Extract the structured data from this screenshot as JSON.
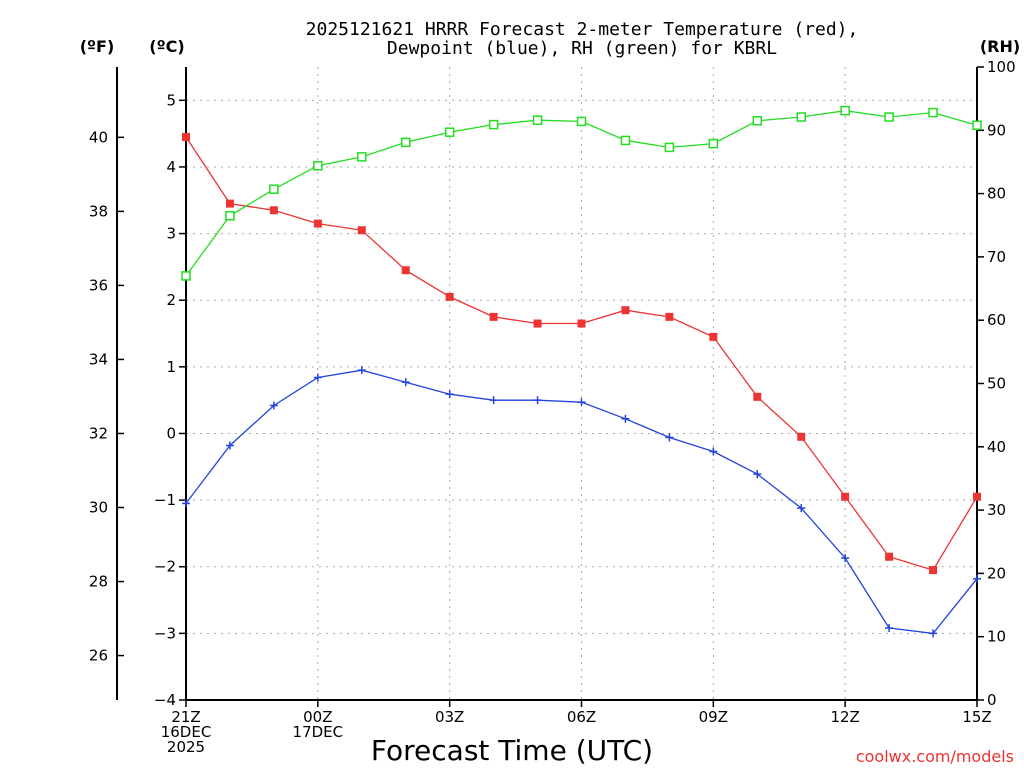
{
  "chart_data": {
    "type": "line",
    "title_line1": "2025121621 HRRR Forecast 2-meter Temperature (red),",
    "title_line2": "Dewpoint (blue), RH (green) for KBRL",
    "xlabel": "Forecast Time (UTC)",
    "unit_left_f": "(ºF)",
    "unit_left_c": "(ºC)",
    "unit_right": "(RH)",
    "credit": "coolwx.com/models",
    "x": [
      0,
      1,
      2,
      3,
      4,
      5,
      6,
      7,
      8,
      9,
      10,
      11,
      12,
      13,
      14,
      15,
      16,
      17,
      18
    ],
    "xlim": [
      0,
      18
    ],
    "x_ticks": [
      {
        "x": 0,
        "lines": [
          "21Z",
          "16DEC",
          "2025"
        ]
      },
      {
        "x": 3,
        "lines": [
          "00Z",
          "17DEC"
        ]
      },
      {
        "x": 6,
        "lines": [
          "03Z"
        ]
      },
      {
        "x": 9,
        "lines": [
          "06Z"
        ]
      },
      {
        "x": 12,
        "lines": [
          "09Z"
        ]
      },
      {
        "x": 15,
        "lines": [
          "12Z"
        ]
      },
      {
        "x": 18,
        "lines": [
          "15Z"
        ]
      }
    ],
    "celsius_axis": {
      "ylim": [
        -4,
        5.5
      ],
      "ticks": [
        -4,
        -3,
        -2,
        -1,
        0,
        1,
        2,
        3,
        4,
        5
      ],
      "labels": [
        "−4",
        "−3",
        "−2",
        "−1",
        "0",
        "1",
        "2",
        "3",
        "4",
        "5"
      ]
    },
    "fahrenheit_axis": {
      "ylim": [
        24.8,
        41.9
      ],
      "ticks": [
        26,
        28,
        30,
        32,
        34,
        36,
        38,
        40
      ],
      "labels": [
        "26",
        "28",
        "30",
        "32",
        "34",
        "36",
        "38",
        "40"
      ]
    },
    "rh_axis": {
      "ylim": [
        0,
        100
      ],
      "ticks": [
        0,
        10,
        20,
        30,
        40,
        50,
        60,
        70,
        80,
        90,
        100
      ],
      "labels": [
        "0",
        "10",
        "20",
        "30",
        "40",
        "50",
        "60",
        "70",
        "80",
        "90",
        "100"
      ]
    },
    "grid": true,
    "series": [
      {
        "name": "Temperature",
        "axis": "celsius",
        "color": "#ee3333",
        "marker": "filled-square",
        "values": [
          4.45,
          3.45,
          3.35,
          3.15,
          3.05,
          2.45,
          2.05,
          1.75,
          1.65,
          1.65,
          1.85,
          1.75,
          1.45,
          0.55,
          -0.05,
          -0.95,
          -1.85,
          -2.05,
          -0.95
        ]
      },
      {
        "name": "Dewpoint",
        "axis": "celsius",
        "color": "#2244dd",
        "marker": "plus",
        "values": [
          -1.05,
          -0.18,
          0.42,
          0.84,
          0.95,
          0.77,
          0.59,
          0.5,
          0.5,
          0.47,
          0.22,
          -0.06,
          -0.27,
          -0.61,
          -1.12,
          -1.87,
          -2.92,
          -3.0,
          -2.18
        ]
      },
      {
        "name": "RH",
        "axis": "rh",
        "color": "#22dd22",
        "marker": "open-square",
        "values": [
          67,
          76.5,
          80.7,
          84.4,
          85.8,
          88.1,
          89.7,
          90.9,
          91.6,
          91.4,
          88.4,
          87.3,
          87.9,
          91.5,
          92.1,
          93.1,
          92.1,
          92.8,
          90.8
        ]
      }
    ]
  }
}
